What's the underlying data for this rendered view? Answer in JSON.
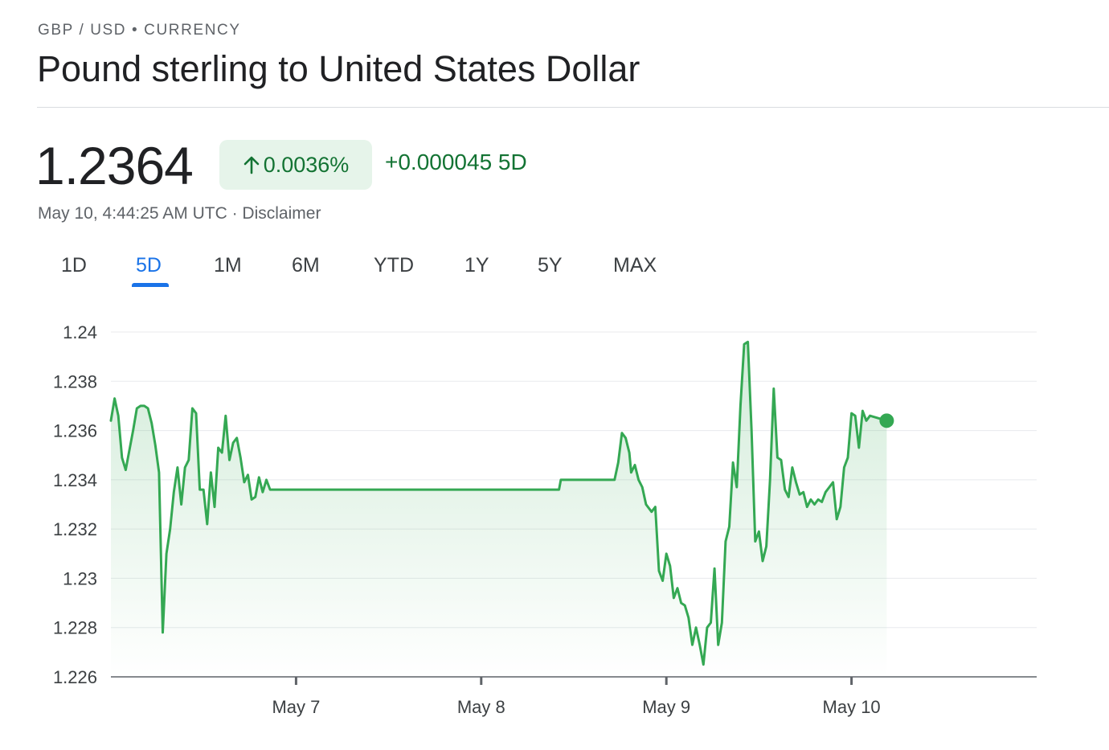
{
  "header": {
    "breadcrumb": "GBP / USD • CURRENCY",
    "title": "Pound sterling to United States Dollar"
  },
  "quote": {
    "price": "1.2364",
    "change_pct": "0.0036%",
    "change_abs": "+0.000045 5D",
    "timestamp": "May 10, 4:44:25 AM UTC · Disclaimer",
    "positive_color": "#137333",
    "badge_bg": "#e6f4ea"
  },
  "tabs": [
    {
      "label": "1D",
      "active": false
    },
    {
      "label": "5D",
      "active": true
    },
    {
      "label": "1M",
      "active": false
    },
    {
      "label": "6M",
      "active": false
    },
    {
      "label": "YTD",
      "active": false
    },
    {
      "label": "1Y",
      "active": false
    },
    {
      "label": "5Y",
      "active": false
    },
    {
      "label": "MAX",
      "active": false
    }
  ],
  "chart_data": {
    "type": "area",
    "line_color": "#34a853",
    "x_ticks": [
      {
        "label": "May 7",
        "x": 1.0
      },
      {
        "label": "May 8",
        "x": 2.0
      },
      {
        "label": "May 9",
        "x": 3.0
      },
      {
        "label": "May 10",
        "x": 4.0
      }
    ],
    "y_ticks": [
      "1.24",
      "1.238",
      "1.236",
      "1.234",
      "1.232",
      "1.23",
      "1.228",
      "1.226"
    ],
    "xlim": [
      0,
      5
    ],
    "ylim": [
      1.226,
      1.24
    ],
    "grid": true,
    "points": [
      [
        0.0,
        1.2364
      ],
      [
        0.02,
        1.2373
      ],
      [
        0.04,
        1.2366
      ],
      [
        0.06,
        1.2349
      ],
      [
        0.08,
        1.2344
      ],
      [
        0.1,
        1.2352
      ],
      [
        0.12,
        1.236
      ],
      [
        0.14,
        1.2369
      ],
      [
        0.16,
        1.237
      ],
      [
        0.18,
        1.237
      ],
      [
        0.2,
        1.2369
      ],
      [
        0.22,
        1.2363
      ],
      [
        0.24,
        1.2354
      ],
      [
        0.26,
        1.2343
      ],
      [
        0.28,
        1.2278
      ],
      [
        0.3,
        1.231
      ],
      [
        0.32,
        1.232
      ],
      [
        0.34,
        1.2335
      ],
      [
        0.36,
        1.2345
      ],
      [
        0.38,
        1.233
      ],
      [
        0.4,
        1.2345
      ],
      [
        0.42,
        1.2348
      ],
      [
        0.44,
        1.2369
      ],
      [
        0.46,
        1.2367
      ],
      [
        0.48,
        1.2336
      ],
      [
        0.5,
        1.2336
      ],
      [
        0.52,
        1.2322
      ],
      [
        0.54,
        1.2343
      ],
      [
        0.56,
        1.2329
      ],
      [
        0.58,
        1.2353
      ],
      [
        0.6,
        1.2351
      ],
      [
        0.62,
        1.2366
      ],
      [
        0.64,
        1.2348
      ],
      [
        0.66,
        1.2355
      ],
      [
        0.68,
        1.2357
      ],
      [
        0.7,
        1.2349
      ],
      [
        0.72,
        1.2339
      ],
      [
        0.74,
        1.2342
      ],
      [
        0.76,
        1.2332
      ],
      [
        0.78,
        1.2333
      ],
      [
        0.8,
        1.2341
      ],
      [
        0.82,
        1.2335
      ],
      [
        0.84,
        1.234
      ],
      [
        0.86,
        1.2336
      ],
      [
        0.9,
        1.2336
      ],
      [
        1.0,
        1.2336
      ],
      [
        1.5,
        1.2336
      ],
      [
        2.0,
        1.2336
      ],
      [
        2.35,
        1.2336
      ],
      [
        2.42,
        1.2336
      ],
      [
        2.43,
        1.234
      ],
      [
        2.6,
        1.234
      ],
      [
        2.72,
        1.234
      ],
      [
        2.74,
        1.2347
      ],
      [
        2.76,
        1.2359
      ],
      [
        2.78,
        1.2357
      ],
      [
        2.8,
        1.2351
      ],
      [
        2.81,
        1.2343
      ],
      [
        2.83,
        1.2346
      ],
      [
        2.85,
        1.234
      ],
      [
        2.87,
        1.2337
      ],
      [
        2.89,
        1.233
      ],
      [
        2.92,
        1.2327
      ],
      [
        2.94,
        1.2329
      ],
      [
        2.96,
        1.2303
      ],
      [
        2.98,
        1.2299
      ],
      [
        3.0,
        1.231
      ],
      [
        3.02,
        1.2305
      ],
      [
        3.04,
        1.2292
      ],
      [
        3.06,
        1.2296
      ],
      [
        3.08,
        1.229
      ],
      [
        3.1,
        1.2289
      ],
      [
        3.12,
        1.2284
      ],
      [
        3.14,
        1.2273
      ],
      [
        3.16,
        1.228
      ],
      [
        3.18,
        1.2273
      ],
      [
        3.2,
        1.2265
      ],
      [
        3.22,
        1.228
      ],
      [
        3.24,
        1.2282
      ],
      [
        3.26,
        1.2304
      ],
      [
        3.28,
        1.2273
      ],
      [
        3.3,
        1.2282
      ],
      [
        3.32,
        1.2315
      ],
      [
        3.34,
        1.2321
      ],
      [
        3.36,
        1.2347
      ],
      [
        3.38,
        1.2337
      ],
      [
        3.4,
        1.237
      ],
      [
        3.42,
        1.2395
      ],
      [
        3.44,
        1.2396
      ],
      [
        3.46,
        1.236
      ],
      [
        3.48,
        1.2315
      ],
      [
        3.5,
        1.2319
      ],
      [
        3.52,
        1.2307
      ],
      [
        3.54,
        1.2313
      ],
      [
        3.56,
        1.234
      ],
      [
        3.58,
        1.2377
      ],
      [
        3.6,
        1.2349
      ],
      [
        3.62,
        1.2348
      ],
      [
        3.64,
        1.2336
      ],
      [
        3.66,
        1.2333
      ],
      [
        3.68,
        1.2345
      ],
      [
        3.7,
        1.2339
      ],
      [
        3.72,
        1.2334
      ],
      [
        3.74,
        1.2335
      ],
      [
        3.76,
        1.2329
      ],
      [
        3.78,
        1.2332
      ],
      [
        3.8,
        1.233
      ],
      [
        3.82,
        1.2332
      ],
      [
        3.84,
        1.2331
      ],
      [
        3.86,
        1.2335
      ],
      [
        3.88,
        1.2337
      ],
      [
        3.9,
        1.2339
      ],
      [
        3.92,
        1.2324
      ],
      [
        3.94,
        1.2329
      ],
      [
        3.96,
        1.2345
      ],
      [
        3.98,
        1.2349
      ],
      [
        4.0,
        1.2367
      ],
      [
        4.02,
        1.2366
      ],
      [
        4.04,
        1.2353
      ],
      [
        4.06,
        1.2368
      ],
      [
        4.08,
        1.2364
      ],
      [
        4.1,
        1.2366
      ],
      [
        4.19,
        1.2364
      ]
    ]
  }
}
